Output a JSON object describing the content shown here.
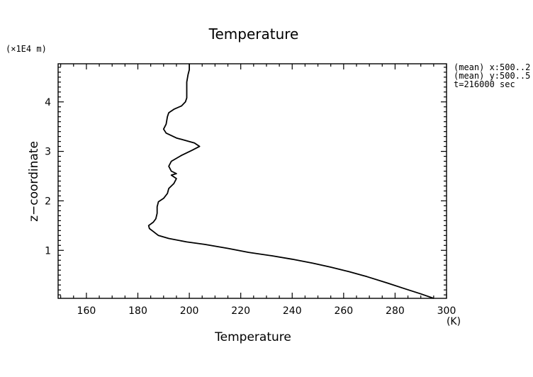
{
  "chart_data": {
    "type": "line",
    "title": "Temperature",
    "xlabel": "Temperature",
    "xunit": "(K)",
    "ylabel": "z−coordinate",
    "yunit": "(×1E4 m)",
    "xlim": [
      149,
      300
    ],
    "ylim": [
      0.03,
      4.77
    ],
    "xticks": [
      160,
      180,
      200,
      220,
      240,
      260,
      280,
      300
    ],
    "yticks": [
      1,
      2,
      3,
      4
    ],
    "annotations": [
      "(mean) x:500..2",
      "(mean) y:500..5",
      "t=216000 sec"
    ],
    "grid": false,
    "series": [
      {
        "color": "#000000",
        "points": [
          [
            295.0,
            0.03
          ],
          [
            290.0,
            0.12
          ],
          [
            284.0,
            0.22
          ],
          [
            277.0,
            0.34
          ],
          [
            269.0,
            0.47
          ],
          [
            262.0,
            0.57
          ],
          [
            255.0,
            0.66
          ],
          [
            248.0,
            0.74
          ],
          [
            240.0,
            0.82
          ],
          [
            232.0,
            0.89
          ],
          [
            223.0,
            0.96
          ],
          [
            215.0,
            1.04
          ],
          [
            206.0,
            1.12
          ],
          [
            199.0,
            1.17
          ],
          [
            192.0,
            1.24
          ],
          [
            188.0,
            1.3
          ],
          [
            186.0,
            1.38
          ],
          [
            184.5,
            1.44
          ],
          [
            184.2,
            1.5
          ],
          [
            186.0,
            1.57
          ],
          [
            187.0,
            1.64
          ],
          [
            187.5,
            1.75
          ],
          [
            187.5,
            1.88
          ],
          [
            188.0,
            1.98
          ],
          [
            190.0,
            2.05
          ],
          [
            191.5,
            2.15
          ],
          [
            192.0,
            2.25
          ],
          [
            194.0,
            2.35
          ],
          [
            195.0,
            2.45
          ],
          [
            193.0,
            2.52
          ],
          [
            195.0,
            2.55
          ],
          [
            193.0,
            2.6
          ],
          [
            192.0,
            2.7
          ],
          [
            193.0,
            2.8
          ],
          [
            197.0,
            2.92
          ],
          [
            201.0,
            3.02
          ],
          [
            204.0,
            3.1
          ],
          [
            202.0,
            3.17
          ],
          [
            195.0,
            3.27
          ],
          [
            191.0,
            3.37
          ],
          [
            190.0,
            3.45
          ],
          [
            191.0,
            3.55
          ],
          [
            191.5,
            3.7
          ],
          [
            192.0,
            3.78
          ],
          [
            194.0,
            3.85
          ],
          [
            197.0,
            3.92
          ],
          [
            198.5,
            4.0
          ],
          [
            199.0,
            4.08
          ],
          [
            199.0,
            4.25
          ],
          [
            199.0,
            4.4
          ],
          [
            199.5,
            4.55
          ],
          [
            200.0,
            4.65
          ],
          [
            200.0,
            4.77
          ]
        ]
      }
    ]
  }
}
